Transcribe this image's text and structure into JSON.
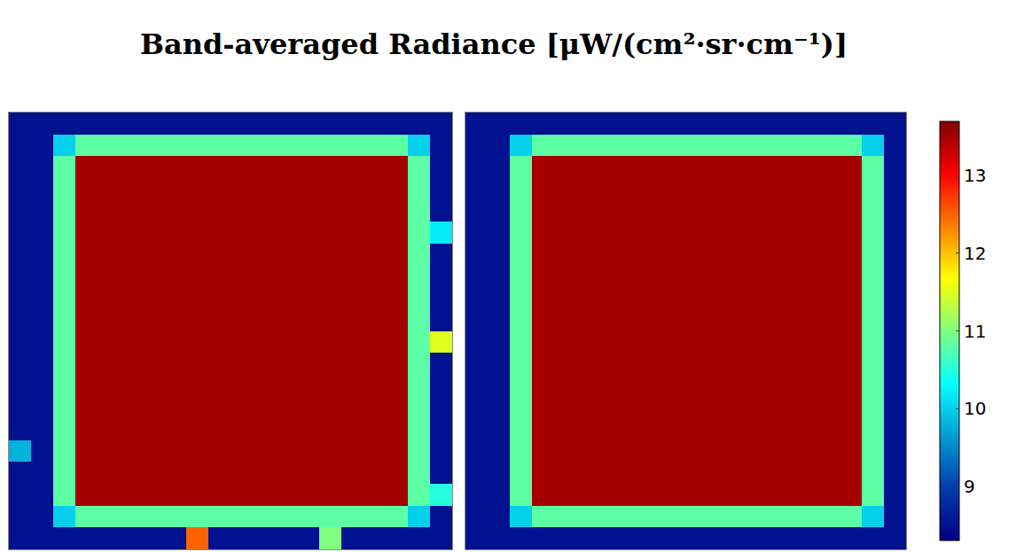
{
  "chart_data": {
    "type": "heatmap",
    "title": "Band-averaged Radiance [μW/(cm²·sr·cm⁻¹)]",
    "tick_labels": false,
    "colorbar": {
      "range": [
        8.3,
        13.7
      ],
      "ticks": [
        9,
        10,
        11,
        12,
        13
      ]
    },
    "panels": [
      {
        "z": [
          [
            8.5,
            8.5,
            8.5,
            8.5,
            8.5,
            8.5,
            8.5,
            8.5,
            8.5,
            8.5,
            8.5,
            8.5,
            8.5,
            8.5,
            8.5,
            8.5,
            8.5,
            8.5,
            8.5,
            8.5
          ],
          [
            8.5,
            8.5,
            10,
            10.8,
            10.8,
            10.8,
            10.8,
            10.8,
            10.8,
            10.8,
            10.8,
            10.8,
            10.8,
            10.8,
            10.8,
            10.8,
            10.8,
            10.8,
            10,
            8.5
          ],
          [
            8.5,
            8.5,
            10.8,
            13.5,
            13.5,
            13.5,
            13.5,
            13.5,
            13.5,
            13.5,
            13.5,
            13.5,
            13.5,
            13.5,
            13.5,
            13.5,
            13.5,
            13.5,
            10.8,
            8.5
          ],
          [
            8.5,
            8.5,
            10.8,
            13.5,
            13.5,
            13.5,
            13.5,
            13.5,
            13.5,
            13.5,
            13.5,
            13.5,
            13.5,
            13.5,
            13.5,
            13.5,
            13.5,
            13.5,
            10.8,
            8.5
          ],
          [
            8.5,
            8.5,
            10.8,
            13.5,
            13.5,
            13.5,
            13.5,
            13.5,
            13.5,
            13.5,
            13.5,
            13.5,
            13.5,
            13.5,
            13.5,
            13.5,
            13.5,
            13.5,
            10.8,
            8.5
          ],
          [
            8.5,
            8.5,
            10.8,
            13.5,
            13.5,
            13.5,
            13.5,
            13.5,
            13.5,
            13.5,
            13.5,
            13.5,
            13.5,
            13.5,
            13.5,
            13.5,
            13.5,
            13.5,
            10.8,
            10.2
          ],
          [
            8.5,
            8.5,
            10.8,
            13.5,
            13.5,
            13.5,
            13.5,
            13.5,
            13.5,
            13.5,
            13.5,
            13.5,
            13.5,
            13.5,
            13.5,
            13.5,
            13.5,
            13.5,
            10.8,
            8.5
          ],
          [
            8.5,
            8.5,
            10.8,
            13.5,
            13.5,
            13.5,
            13.5,
            13.5,
            13.5,
            13.5,
            13.5,
            13.5,
            13.5,
            13.5,
            13.5,
            13.5,
            13.5,
            13.5,
            10.8,
            8.5
          ],
          [
            8.5,
            8.5,
            10.8,
            13.5,
            13.5,
            13.5,
            13.5,
            13.5,
            13.5,
            13.5,
            13.5,
            13.5,
            13.5,
            13.5,
            13.5,
            13.5,
            13.5,
            13.5,
            10.8,
            8.5
          ],
          [
            8.5,
            8.5,
            10.8,
            13.5,
            13.5,
            13.5,
            13.5,
            13.5,
            13.5,
            13.5,
            13.5,
            13.5,
            13.5,
            13.5,
            13.5,
            13.5,
            13.5,
            13.5,
            10.8,
            8.5
          ],
          [
            8.5,
            8.5,
            10.8,
            13.5,
            13.5,
            13.5,
            13.5,
            13.5,
            13.5,
            13.5,
            13.5,
            13.5,
            13.5,
            13.5,
            13.5,
            13.5,
            13.5,
            13.5,
            10.8,
            11.5
          ],
          [
            8.5,
            8.5,
            10.8,
            13.5,
            13.5,
            13.5,
            13.5,
            13.5,
            13.5,
            13.5,
            13.5,
            13.5,
            13.5,
            13.5,
            13.5,
            13.5,
            13.5,
            13.5,
            10.8,
            8.5
          ],
          [
            8.5,
            8.5,
            10.8,
            13.5,
            13.5,
            13.5,
            13.5,
            13.5,
            13.5,
            13.5,
            13.5,
            13.5,
            13.5,
            13.5,
            13.5,
            13.5,
            13.5,
            13.5,
            10.8,
            8.5
          ],
          [
            8.5,
            8.5,
            10.8,
            13.5,
            13.5,
            13.5,
            13.5,
            13.5,
            13.5,
            13.5,
            13.5,
            13.5,
            13.5,
            13.5,
            13.5,
            13.5,
            13.5,
            13.5,
            10.8,
            8.5
          ],
          [
            8.5,
            8.5,
            10.8,
            13.5,
            13.5,
            13.5,
            13.5,
            13.5,
            13.5,
            13.5,
            13.5,
            13.5,
            13.5,
            13.5,
            13.5,
            13.5,
            13.5,
            13.5,
            10.8,
            8.5
          ],
          [
            9.8,
            8.5,
            10.8,
            13.5,
            13.5,
            13.5,
            13.5,
            13.5,
            13.5,
            13.5,
            13.5,
            13.5,
            13.5,
            13.5,
            13.5,
            13.5,
            13.5,
            13.5,
            10.8,
            8.5
          ],
          [
            8.5,
            8.5,
            10.8,
            13.5,
            13.5,
            13.5,
            13.5,
            13.5,
            13.5,
            13.5,
            13.5,
            13.5,
            13.5,
            13.5,
            13.5,
            13.5,
            13.5,
            13.5,
            10.8,
            8.5
          ],
          [
            8.5,
            8.5,
            10.8,
            13.5,
            13.5,
            13.5,
            13.5,
            13.5,
            13.5,
            13.5,
            13.5,
            13.5,
            13.5,
            13.5,
            13.5,
            13.5,
            13.5,
            13.5,
            10.8,
            10.5
          ],
          [
            8.5,
            8.5,
            10,
            10.8,
            10.8,
            10.8,
            10.8,
            10.8,
            10.8,
            10.8,
            10.8,
            10.8,
            10.8,
            10.8,
            10.8,
            10.8,
            10.8,
            10.8,
            10,
            8.5
          ],
          [
            8.5,
            8.5,
            8.5,
            8.5,
            8.5,
            8.5,
            8.5,
            8.5,
            12.5,
            8.5,
            8.5,
            8.5,
            8.5,
            8.5,
            11,
            8.5,
            8.5,
            8.5,
            8.5,
            8.5
          ]
        ]
      },
      {
        "z": [
          [
            8.5,
            8.5,
            8.5,
            8.5,
            8.5,
            8.5,
            8.5,
            8.5,
            8.5,
            8.5,
            8.5,
            8.5,
            8.5,
            8.5,
            8.5,
            8.5,
            8.5,
            8.5,
            8.5,
            8.5
          ],
          [
            8.5,
            8.5,
            10,
            10.8,
            10.8,
            10.8,
            10.8,
            10.8,
            10.8,
            10.8,
            10.8,
            10.8,
            10.8,
            10.8,
            10.8,
            10.8,
            10.8,
            10.8,
            10,
            8.5
          ],
          [
            8.5,
            8.5,
            10.8,
            13.5,
            13.5,
            13.5,
            13.5,
            13.5,
            13.5,
            13.5,
            13.5,
            13.5,
            13.5,
            13.5,
            13.5,
            13.5,
            13.5,
            13.5,
            10.8,
            8.5
          ],
          [
            8.5,
            8.5,
            10.8,
            13.5,
            13.5,
            13.5,
            13.5,
            13.5,
            13.5,
            13.5,
            13.5,
            13.5,
            13.5,
            13.5,
            13.5,
            13.5,
            13.5,
            13.5,
            10.8,
            8.5
          ],
          [
            8.5,
            8.5,
            10.8,
            13.5,
            13.5,
            13.5,
            13.5,
            13.5,
            13.5,
            13.5,
            13.5,
            13.5,
            13.5,
            13.5,
            13.5,
            13.5,
            13.5,
            13.5,
            10.8,
            8.5
          ],
          [
            8.5,
            8.5,
            10.8,
            13.5,
            13.5,
            13.5,
            13.5,
            13.5,
            13.5,
            13.5,
            13.5,
            13.5,
            13.5,
            13.5,
            13.5,
            13.5,
            13.5,
            13.5,
            10.8,
            8.5
          ],
          [
            8.5,
            8.5,
            10.8,
            13.5,
            13.5,
            13.5,
            13.5,
            13.5,
            13.5,
            13.5,
            13.5,
            13.5,
            13.5,
            13.5,
            13.5,
            13.5,
            13.5,
            13.5,
            10.8,
            8.5
          ],
          [
            8.5,
            8.5,
            10.8,
            13.5,
            13.5,
            13.5,
            13.5,
            13.5,
            13.5,
            13.5,
            13.5,
            13.5,
            13.5,
            13.5,
            13.5,
            13.5,
            13.5,
            13.5,
            10.8,
            8.5
          ],
          [
            8.5,
            8.5,
            10.8,
            13.5,
            13.5,
            13.5,
            13.5,
            13.5,
            13.5,
            13.5,
            13.5,
            13.5,
            13.5,
            13.5,
            13.5,
            13.5,
            13.5,
            13.5,
            10.8,
            8.5
          ],
          [
            8.5,
            8.5,
            10.8,
            13.5,
            13.5,
            13.5,
            13.5,
            13.5,
            13.5,
            13.5,
            13.5,
            13.5,
            13.5,
            13.5,
            13.5,
            13.5,
            13.5,
            13.5,
            10.8,
            8.5
          ],
          [
            8.5,
            8.5,
            10.8,
            13.5,
            13.5,
            13.5,
            13.5,
            13.5,
            13.5,
            13.5,
            13.5,
            13.5,
            13.5,
            13.5,
            13.5,
            13.5,
            13.5,
            13.5,
            10.8,
            8.5
          ],
          [
            8.5,
            8.5,
            10.8,
            13.5,
            13.5,
            13.5,
            13.5,
            13.5,
            13.5,
            13.5,
            13.5,
            13.5,
            13.5,
            13.5,
            13.5,
            13.5,
            13.5,
            13.5,
            10.8,
            8.5
          ],
          [
            8.5,
            8.5,
            10.8,
            13.5,
            13.5,
            13.5,
            13.5,
            13.5,
            13.5,
            13.5,
            13.5,
            13.5,
            13.5,
            13.5,
            13.5,
            13.5,
            13.5,
            13.5,
            10.8,
            8.5
          ],
          [
            8.5,
            8.5,
            10.8,
            13.5,
            13.5,
            13.5,
            13.5,
            13.5,
            13.5,
            13.5,
            13.5,
            13.5,
            13.5,
            13.5,
            13.5,
            13.5,
            13.5,
            13.5,
            10.8,
            8.5
          ],
          [
            8.5,
            8.5,
            10.8,
            13.5,
            13.5,
            13.5,
            13.5,
            13.5,
            13.5,
            13.5,
            13.5,
            13.5,
            13.5,
            13.5,
            13.5,
            13.5,
            13.5,
            13.5,
            10.8,
            8.5
          ],
          [
            8.5,
            8.5,
            10.8,
            13.5,
            13.5,
            13.5,
            13.5,
            13.5,
            13.5,
            13.5,
            13.5,
            13.5,
            13.5,
            13.5,
            13.5,
            13.5,
            13.5,
            13.5,
            10.8,
            8.5
          ],
          [
            8.5,
            8.5,
            10.8,
            13.5,
            13.5,
            13.5,
            13.5,
            13.5,
            13.5,
            13.5,
            13.5,
            13.5,
            13.5,
            13.5,
            13.5,
            13.5,
            13.5,
            13.5,
            10.8,
            8.5
          ],
          [
            8.5,
            8.5,
            10.8,
            13.5,
            13.5,
            13.5,
            13.5,
            13.5,
            13.5,
            13.5,
            13.5,
            13.5,
            13.5,
            13.5,
            13.5,
            13.5,
            13.5,
            13.5,
            10.8,
            8.5
          ],
          [
            8.5,
            8.5,
            10,
            10.8,
            10.8,
            10.8,
            10.8,
            10.8,
            10.8,
            10.8,
            10.8,
            10.8,
            10.8,
            10.8,
            10.8,
            10.8,
            10.8,
            10.8,
            10,
            8.5
          ],
          [
            8.5,
            8.5,
            8.5,
            8.5,
            8.5,
            8.5,
            8.5,
            8.5,
            8.5,
            8.5,
            8.5,
            8.5,
            8.5,
            8.5,
            8.5,
            8.5,
            8.5,
            8.5,
            8.5,
            8.5
          ]
        ]
      }
    ]
  }
}
